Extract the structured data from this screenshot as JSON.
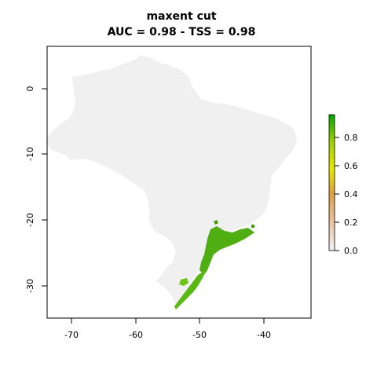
{
  "title": "maxent cut",
  "subtitle": "AUC = 0.98 - TSS = 0.98",
  "map": {
    "x_ticks": [
      "-70",
      "-60",
      "-50",
      "-40"
    ],
    "y_ticks": [
      "0",
      "-10",
      "-20",
      "-30"
    ],
    "x_range": [
      -74,
      -33
    ],
    "y_range": [
      -35,
      6.5
    ],
    "region_color": "#f0f0f0",
    "suitability_color_low": "#3a9a10",
    "suitability_color_high": "#6fc418"
  },
  "legend": {
    "labels": [
      "0.0",
      "0.2",
      "0.4",
      "0.6",
      "0.8"
    ],
    "min": 0,
    "max": 0.96,
    "colors": [
      "#f2f2f2",
      "#e8c0a0",
      "#dca040",
      "#e8e800",
      "#a0d200",
      "#00a600"
    ]
  }
}
